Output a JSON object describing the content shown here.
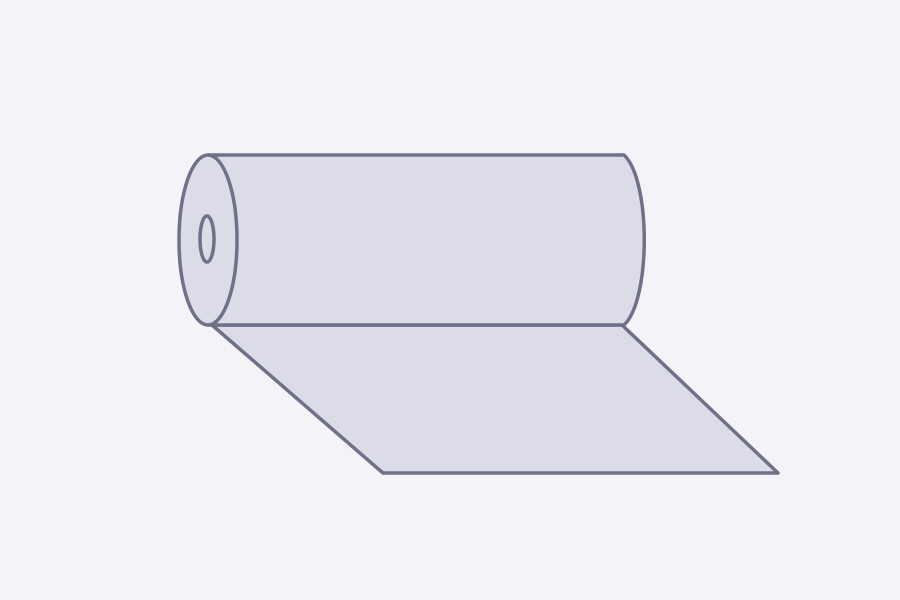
{
  "illustration": {
    "subject": "roll-of-material-icon",
    "colors": {
      "background": "#f3f3f8",
      "fill": "#dcdce8",
      "stroke": "#707089"
    }
  }
}
